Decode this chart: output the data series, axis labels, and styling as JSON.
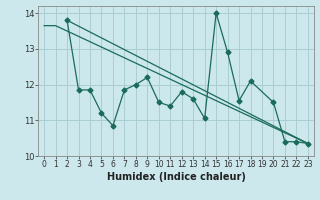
{
  "xlabel": "Humidex (Indice chaleur)",
  "bg_color": "#cce8ec",
  "grid_color": "#aacdd4",
  "line_color": "#1a6b5a",
  "xlim": [
    -0.5,
    23.5
  ],
  "ylim": [
    10,
    14.2
  ],
  "yticks": [
    10,
    11,
    12,
    13,
    14
  ],
  "xticks": [
    0,
    1,
    2,
    3,
    4,
    5,
    6,
    7,
    8,
    9,
    10,
    11,
    12,
    13,
    14,
    15,
    16,
    17,
    18,
    19,
    20,
    21,
    22,
    23
  ],
  "line1_x": [
    0,
    1,
    23
  ],
  "line1_y": [
    13.65,
    13.65,
    10.35
  ],
  "line2_x": [
    2,
    23
  ],
  "line2_y": [
    13.8,
    10.35
  ],
  "zigzag_x": [
    2,
    3,
    4,
    5,
    6,
    7,
    8,
    9,
    10,
    11,
    12,
    13,
    14,
    15,
    16,
    17,
    18,
    20,
    21,
    22,
    23
  ],
  "zigzag_y": [
    13.8,
    11.85,
    11.85,
    11.2,
    10.85,
    11.85,
    12.0,
    12.2,
    11.5,
    11.4,
    11.8,
    11.6,
    11.05,
    14.0,
    12.9,
    11.55,
    12.1,
    11.5,
    10.4,
    10.4,
    10.35
  ]
}
